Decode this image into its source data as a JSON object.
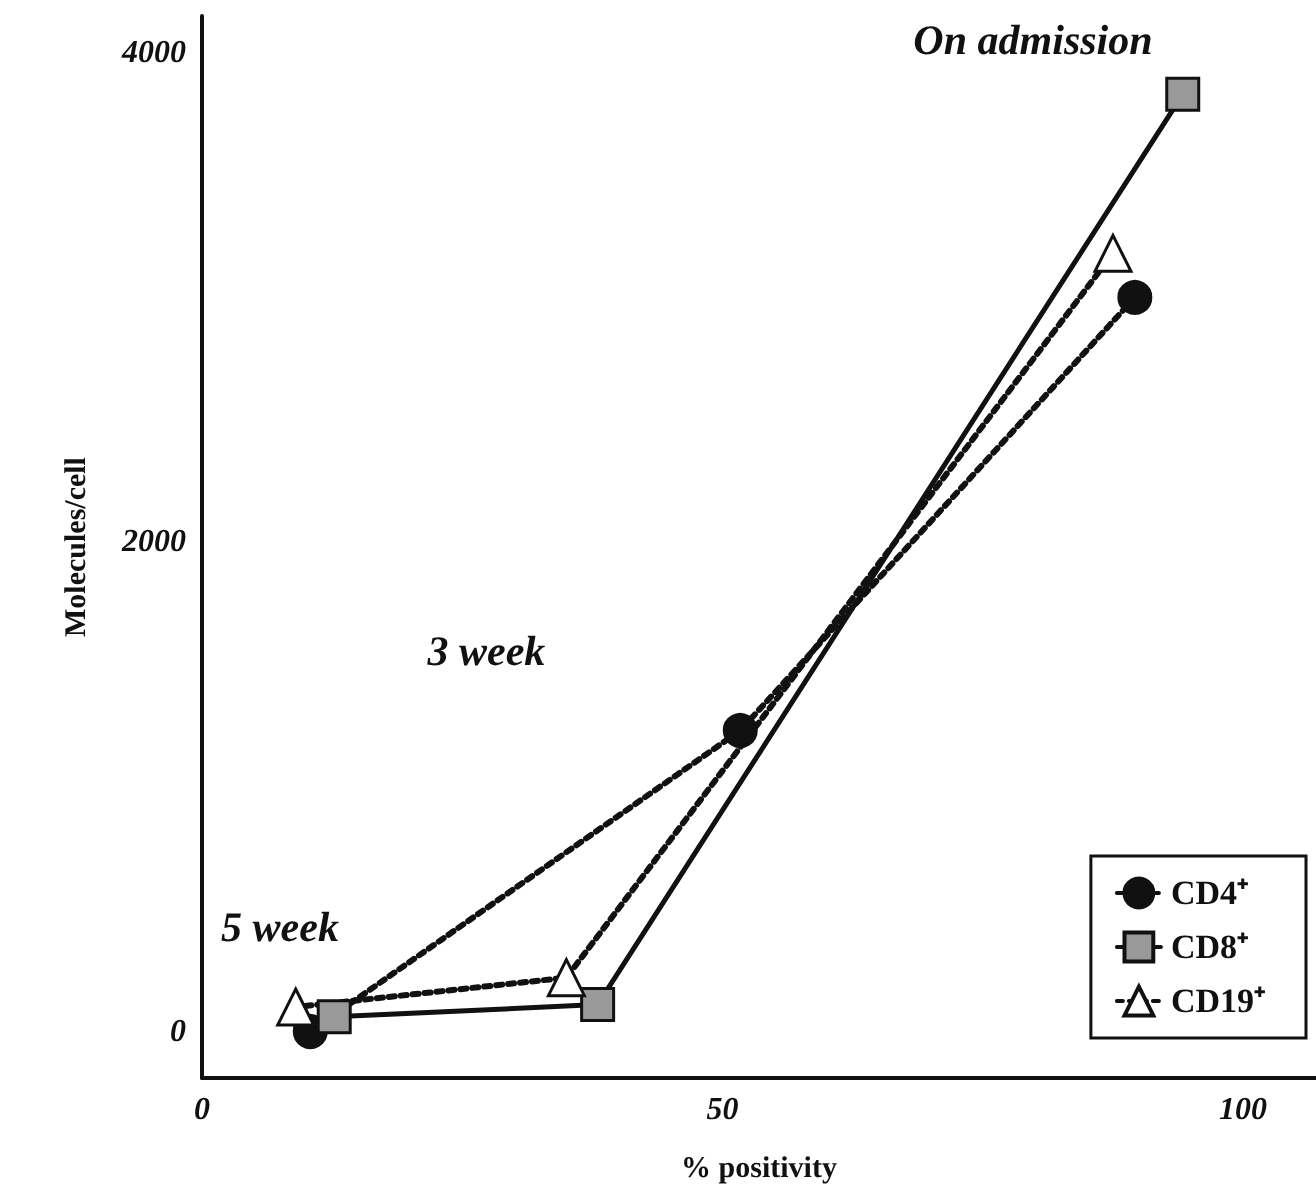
{
  "chart_data": {
    "type": "line",
    "xlabel": "% positivity",
    "ylabel": "Molecules/cell",
    "xlim": [
      0,
      107
    ],
    "ylim": [
      -190,
      4150
    ],
    "xticks": [
      0,
      50,
      100
    ],
    "yticks": [
      0,
      2000,
      4000
    ],
    "grid": false,
    "legend": "bottom right",
    "series": [
      {
        "name": "CD4⁺",
        "color": "#111111",
        "marker": "circle",
        "line_style": "dotted",
        "x": [
          89.6,
          51.7,
          10.4
        ],
        "values": [
          3000,
          1230,
          0
        ]
      },
      {
        "name": "CD8⁺",
        "color": "#999999",
        "marker": "square",
        "line_style": "solid",
        "x": [
          94.2,
          38,
          12.7
        ],
        "values": [
          3830,
          110,
          60
        ]
      },
      {
        "name": "CD19⁺",
        "color": "#ffffff",
        "marker": "triangle",
        "line_style": "dotted",
        "x": [
          87.5,
          35,
          9
        ],
        "values": [
          3180,
          220,
          100
        ]
      }
    ],
    "annotations": [
      "On admission",
      "3 week",
      "5 week"
    ]
  }
}
